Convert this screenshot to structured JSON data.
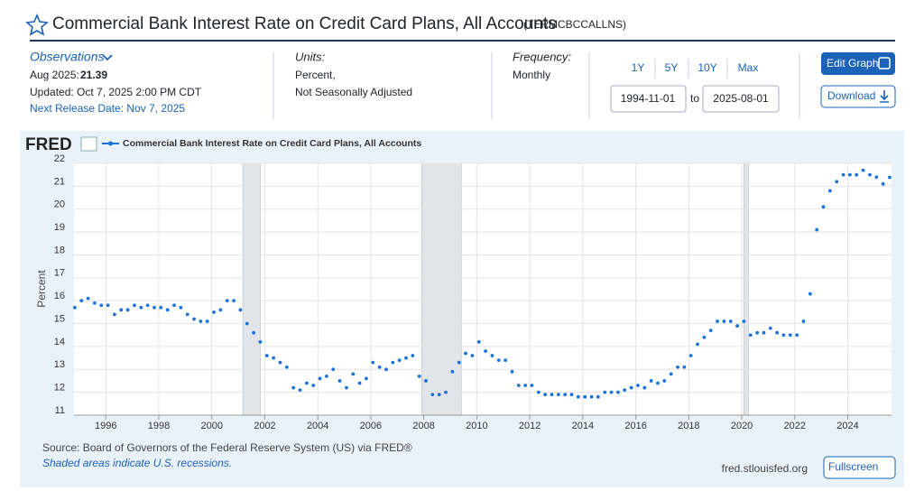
{
  "header": {
    "title": "Commercial Bank Interest Rate on Credit Card Plans, All Accounts",
    "series_id": "(TERMCBCCALLNS)"
  },
  "observations": {
    "label": "Observations",
    "date": "Aug 2025:",
    "value": 21.39,
    "updated": "Updated: Oct 7, 2025 2:00 PM CDT",
    "next_release": "Next Release Date: Nov 7, 2025"
  },
  "units": {
    "label": "Units:",
    "lines": [
      "Percent,",
      "Not Seasonally Adjusted"
    ]
  },
  "frequency": {
    "label": "Frequency:",
    "value": "Monthly"
  },
  "range": {
    "buttons": [
      "1Y",
      "5Y",
      "10Y",
      "Max"
    ],
    "start": "1994-11-01",
    "separator": "to",
    "end": "2025-08-01"
  },
  "actions": {
    "edit": "Edit Graph",
    "download": "Download",
    "fullscreen": "Fullscreen"
  },
  "chart_data": {
    "type": "scatter",
    "logo": "FRED",
    "y_label": "Percent",
    "grid": true,
    "series": [
      {
        "name": "Commercial Bank Interest Rate on Credit Card Plans, All Accounts",
        "color": "#1a73d8",
        "values": [
          15.7,
          16.0,
          16.1,
          15.9,
          15.8,
          15.8,
          15.4,
          15.6,
          15.6,
          15.8,
          15.7,
          15.8,
          15.7,
          15.7,
          15.6,
          15.8,
          15.7,
          15.4,
          15.2,
          15.1,
          15.1,
          15.5,
          15.6,
          16.0,
          16.0,
          15.6,
          15.0,
          14.6,
          14.2,
          13.6,
          13.5,
          13.3,
          13.1,
          12.2,
          12.1,
          12.4,
          12.3,
          12.6,
          12.7,
          13.0,
          12.5,
          12.2,
          12.8,
          12.4,
          12.6,
          13.3,
          13.1,
          13.0,
          13.3,
          13.4,
          13.5,
          13.6,
          12.7,
          12.5,
          11.9,
          11.9,
          12.0,
          12.9,
          13.3,
          13.7,
          13.6,
          14.2,
          13.8,
          13.6,
          13.4,
          13.4,
          12.9,
          12.3,
          12.3,
          12.3,
          12.0,
          11.9,
          11.9,
          11.9,
          11.9,
          11.9,
          11.8,
          11.8,
          11.8,
          11.8,
          12.0,
          12.0,
          12.0,
          12.1,
          12.2,
          12.3,
          12.2,
          12.5,
          12.4,
          12.5,
          12.8,
          13.1,
          13.1,
          13.6,
          14.1,
          14.4,
          14.7,
          15.1,
          15.1,
          15.1,
          14.9,
          15.1,
          14.5,
          14.6,
          14.6,
          14.8,
          14.6,
          14.5,
          14.5,
          14.5,
          15.1,
          16.3,
          19.1,
          20.1,
          20.8,
          21.2,
          21.5,
          21.5,
          21.5,
          21.7,
          21.5,
          21.4,
          21.1,
          21.39
        ]
      }
    ],
    "x": [
      1994.83,
      1995.08,
      1995.33,
      1995.58,
      1995.83,
      1996.08,
      1996.33,
      1996.58,
      1996.83,
      1997.08,
      1997.33,
      1997.58,
      1997.83,
      1998.08,
      1998.33,
      1998.58,
      1998.83,
      1999.08,
      1999.33,
      1999.58,
      1999.83,
      2000.08,
      2000.33,
      2000.58,
      2000.83,
      2001.08,
      2001.33,
      2001.58,
      2001.83,
      2002.08,
      2002.33,
      2002.58,
      2002.83,
      2003.08,
      2003.33,
      2003.58,
      2003.83,
      2004.08,
      2004.33,
      2004.58,
      2004.83,
      2005.08,
      2005.33,
      2005.58,
      2005.83,
      2006.08,
      2006.33,
      2006.58,
      2006.83,
      2007.08,
      2007.33,
      2007.58,
      2007.83,
      2008.08,
      2008.33,
      2008.58,
      2008.83,
      2009.08,
      2009.33,
      2009.58,
      2009.83,
      2010.08,
      2010.33,
      2010.58,
      2010.83,
      2011.08,
      2011.33,
      2011.58,
      2011.83,
      2012.08,
      2012.33,
      2012.58,
      2012.83,
      2013.08,
      2013.33,
      2013.58,
      2013.83,
      2014.08,
      2014.33,
      2014.58,
      2014.83,
      2015.08,
      2015.33,
      2015.58,
      2015.83,
      2016.08,
      2016.33,
      2016.58,
      2016.83,
      2017.08,
      2017.33,
      2017.58,
      2017.83,
      2018.08,
      2018.33,
      2018.58,
      2018.83,
      2019.08,
      2019.33,
      2019.58,
      2019.83,
      2020.08,
      2020.33,
      2020.58,
      2020.83,
      2021.08,
      2021.33,
      2021.58,
      2021.83,
      2022.08,
      2022.33,
      2022.58,
      2022.83,
      2023.08,
      2023.33,
      2023.58,
      2023.83,
      2024.08,
      2024.33,
      2024.58,
      2024.83,
      2025.08,
      2025.33,
      2025.58
    ],
    "xlim": [
      1994.8,
      2025.65
    ],
    "xticks": [
      1996,
      1998,
      2000,
      2002,
      2004,
      2006,
      2008,
      2010,
      2012,
      2014,
      2016,
      2018,
      2020,
      2022,
      2024
    ],
    "ylim": [
      11,
      22
    ],
    "yticks": [
      11,
      12,
      13,
      14,
      15,
      16,
      17,
      18,
      19,
      20,
      21,
      22
    ],
    "recessions": [
      [
        2001.17,
        2001.83
      ],
      [
        2007.92,
        2009.42
      ],
      [
        2020.08,
        2020.25
      ]
    ]
  },
  "footer": {
    "source": "Source: Board of Governors of the Federal Reserve System (US) via FRED®",
    "note": "Shaded areas indicate U.S. recessions.",
    "site": "fred.stlouisfed.org"
  }
}
